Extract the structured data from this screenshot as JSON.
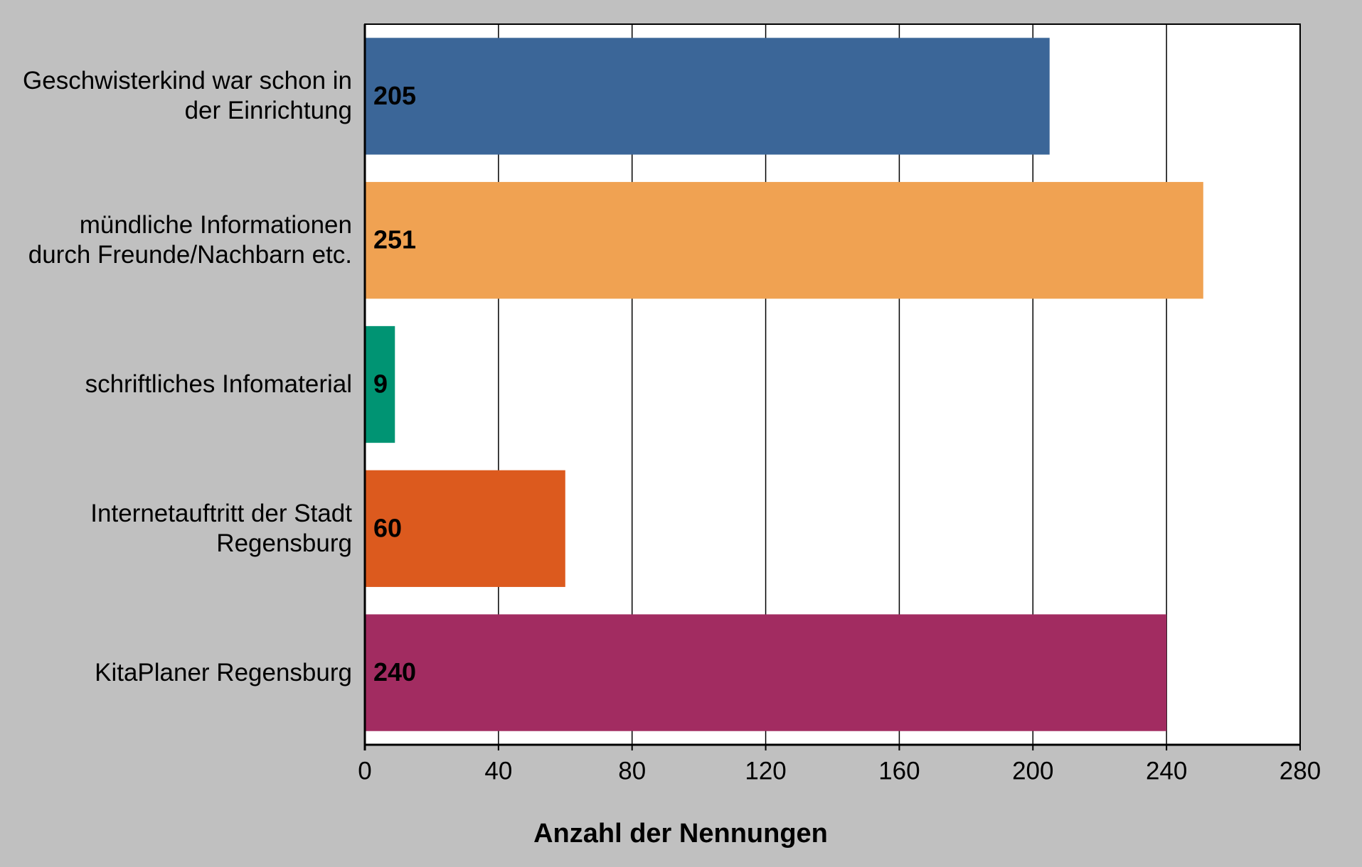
{
  "chart_data": {
    "type": "barh",
    "categories": [
      "Geschwisterkind war schon in der Einrichtung",
      "mündliche Informationen durch Freunde/Nachbarn etc.",
      "schriftliches Infomaterial",
      "Internetauftritt der Stadt Regensburg",
      "KitaPlaner Regensburg"
    ],
    "values": [
      205,
      251,
      9,
      60,
      240
    ],
    "colors": [
      "#3b6698",
      "#f0a252",
      "#009473",
      "#dc5a1e",
      "#a22c61"
    ],
    "xlabel": "Anzahl der Nennungen",
    "xlim": [
      0,
      280
    ],
    "xticks": [
      0,
      40,
      80,
      120,
      160,
      200,
      240,
      280
    ],
    "grid": true
  }
}
